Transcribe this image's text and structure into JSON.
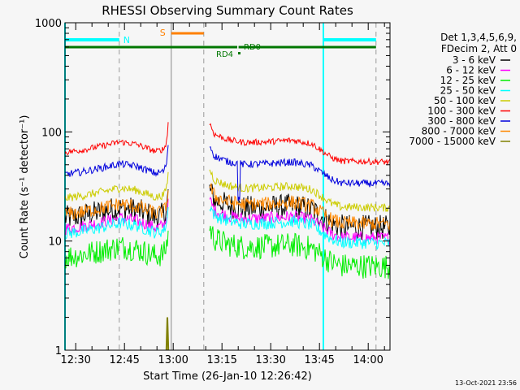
{
  "chart_data": {
    "type": "line",
    "title": "RHESSI Observing Summary Count Rates",
    "xlabel": "Start Time (26-Jan-10 12:26:42)",
    "ylabel": "Count Rate (s⁻¹ detector⁻¹)",
    "x_units": "minutes after 12:26:42",
    "xlim": [
      0,
      100
    ],
    "ylim": [
      1,
      1000
    ],
    "yscale": "log",
    "x_tick_labels": [
      {
        "t": 3.3,
        "label": "12:30"
      },
      {
        "t": 18.3,
        "label": "12:45"
      },
      {
        "t": 33.3,
        "label": "13:00"
      },
      {
        "t": 48.3,
        "label": "13:15"
      },
      {
        "t": 63.3,
        "label": "13:30"
      },
      {
        "t": 78.3,
        "label": "13:45"
      },
      {
        "t": 93.3,
        "label": "14:00"
      }
    ],
    "y_tick_labels": [
      {
        "v": 1,
        "label": "1"
      },
      {
        "v": 10,
        "label": "10"
      },
      {
        "v": 100,
        "label": "100"
      },
      {
        "v": 1000,
        "label": "1000"
      }
    ],
    "legend_header": [
      "Det 1,3,4,5,6,9,",
      "FDecim 2, Att 0"
    ],
    "legend_position": "right",
    "data_gap": [
      32,
      44.5
    ],
    "profile_pre": [
      [
        0,
        65
      ],
      [
        5,
        68
      ],
      [
        12,
        75
      ],
      [
        17,
        81
      ],
      [
        22,
        77
      ],
      [
        28,
        66
      ],
      [
        30.5,
        70
      ],
      [
        31.4,
        85
      ],
      [
        31.8,
        130
      ]
    ],
    "profile_post": [
      [
        44.5,
        120
      ],
      [
        46,
        95
      ],
      [
        50,
        85
      ],
      [
        55,
        80
      ],
      [
        62,
        81
      ],
      [
        70,
        84
      ],
      [
        76,
        78
      ],
      [
        80,
        64
      ],
      [
        82,
        58
      ],
      [
        85,
        54
      ],
      [
        100,
        53
      ]
    ],
    "series": [
      {
        "name": "3 - 6 keV",
        "color": "#000000",
        "scale": 0.25,
        "noise": 0.12
      },
      {
        "name": "6 - 12 keV",
        "color": "#ff00ff",
        "scale": 0.2,
        "noise": 0.06
      },
      {
        "name": "12 - 25 keV",
        "color": "#00ee00",
        "scale": 0.11,
        "noise": 0.12
      },
      {
        "name": "25 - 50 keV",
        "color": "#00ffff",
        "scale": 0.18,
        "noise": 0.06
      },
      {
        "name": "50 - 100 keV",
        "color": "#cccc00",
        "scale": 0.38,
        "noise": 0.04
      },
      {
        "name": "100 - 300 keV",
        "color": "#ff0000",
        "scale": 1.0,
        "noise": 0.03
      },
      {
        "name": "300 - 800 keV",
        "color": "#0000dd",
        "scale": 0.63,
        "noise": 0.035,
        "dip": {
          "t": 53.5,
          "v": 25
        }
      },
      {
        "name": "800 - 7000 keV",
        "color": "#ff8800",
        "scale": 0.27,
        "noise": 0.07
      },
      {
        "name": "7000 - 15000 keV",
        "color": "#808000",
        "scale": 0,
        "noise": 0
      }
    ],
    "olive_spike": [
      [
        31.2,
        1
      ],
      [
        31.5,
        2
      ],
      [
        31.8,
        1
      ]
    ],
    "vertical_lines": [
      {
        "t": 0,
        "color": "#00ffff",
        "style": "solid"
      },
      {
        "t": 16.7,
        "color": "#999999",
        "style": "dash"
      },
      {
        "t": 32.7,
        "color": "#888888",
        "style": "solid"
      },
      {
        "t": 42.7,
        "color": "#999999",
        "style": "dash"
      },
      {
        "t": 79.5,
        "color": "#00ffff",
        "style": "solid"
      },
      {
        "t": 95.7,
        "color": "#999999",
        "style": "dash"
      }
    ],
    "annotations": {
      "night_label": "N",
      "saa_label": "S",
      "rd4_label": "RD4",
      "rd0_label": "RD0",
      "night_intervals": [
        [
          0,
          16.7
        ],
        [
          79.5,
          95.7
        ]
      ],
      "saa_intervals": [
        [
          32.7,
          42.7
        ]
      ],
      "decimation_line": [
        [
          0,
          53
        ],
        [
          53.4,
          95.7
        ]
      ]
    }
  },
  "footer": {
    "timestamp": "13-Oct-2021 23:56"
  }
}
